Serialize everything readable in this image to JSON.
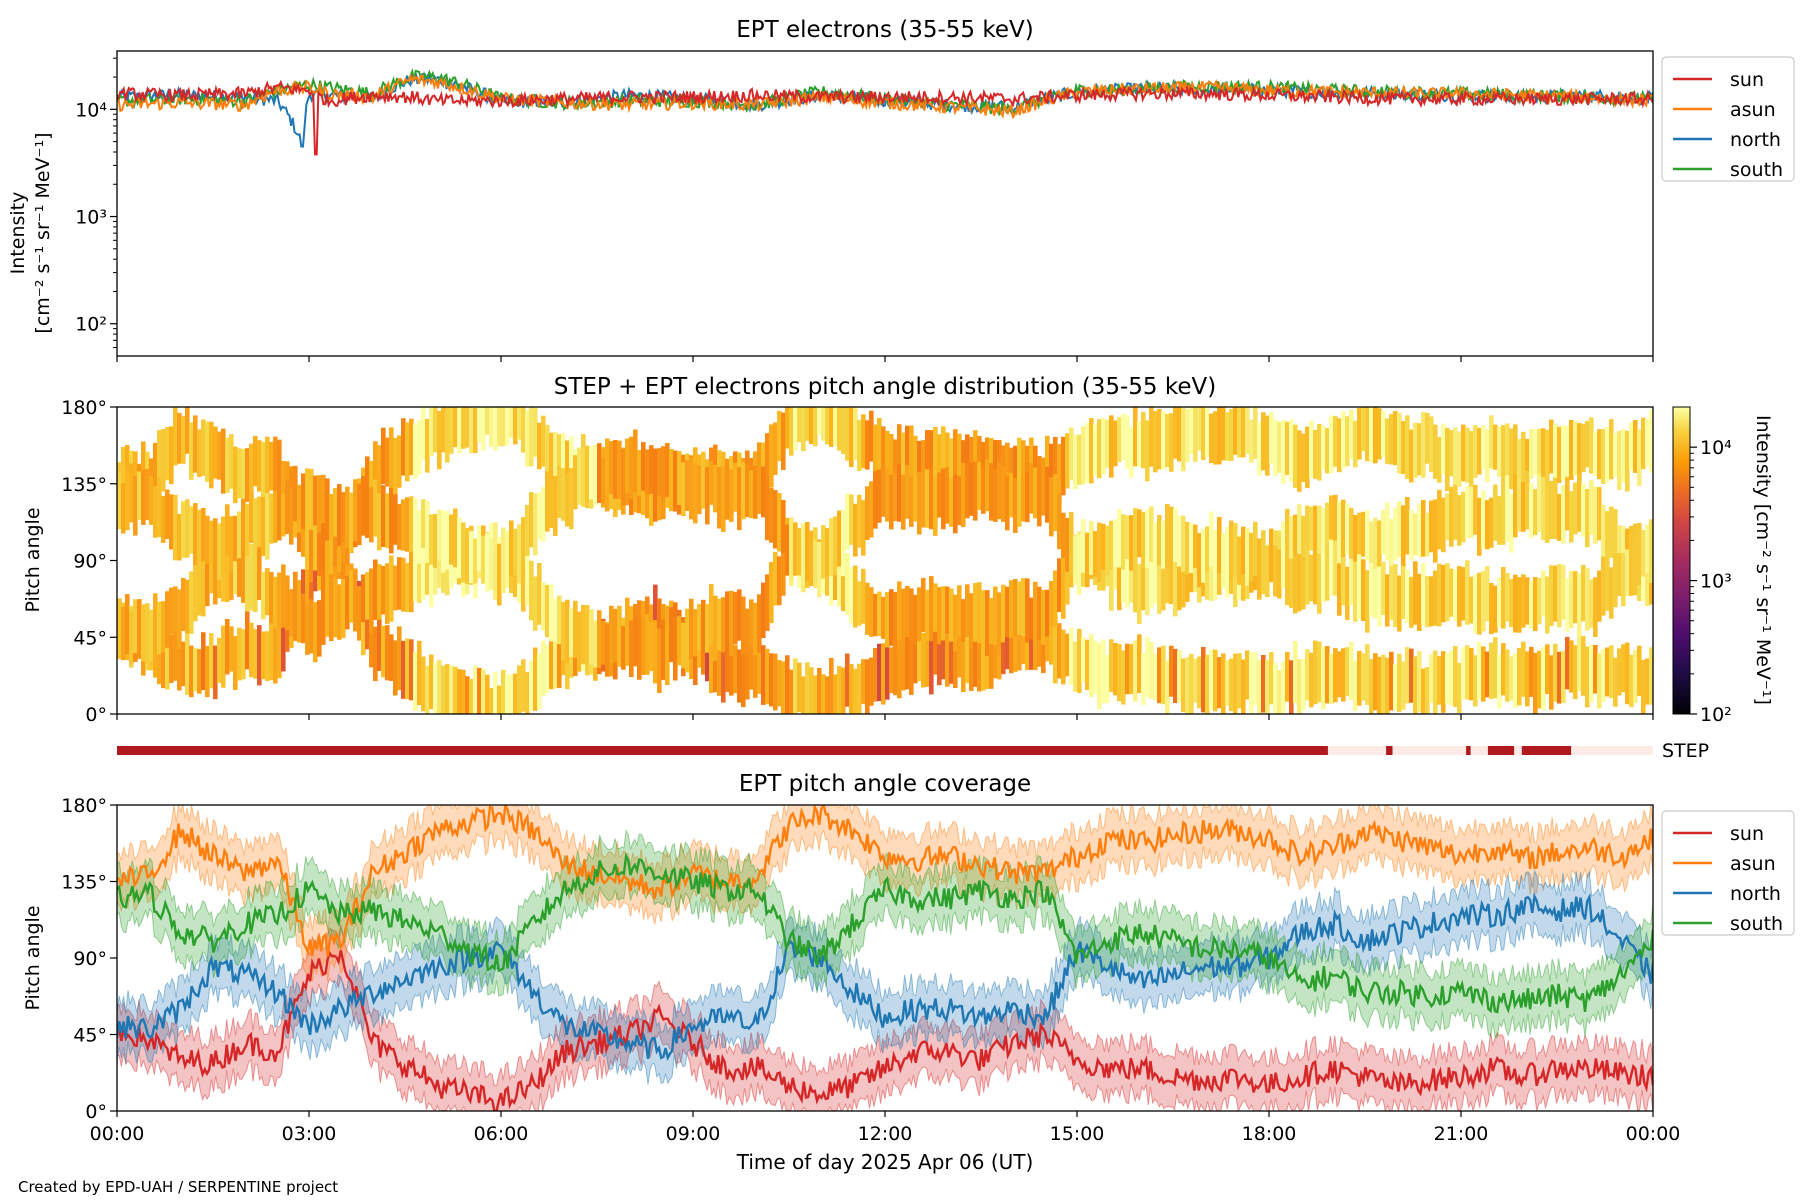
{
  "credit": "Created by EPD-UAH / SERPENTINE project",
  "xlabel": "Time of day 2025 Apr 06 (UT)",
  "xticks": [
    "00:00",
    "03:00",
    "06:00",
    "09:00",
    "12:00",
    "15:00",
    "18:00",
    "21:00",
    "00:00"
  ],
  "colors": {
    "sun": "#d62728",
    "asun": "#ff7f0e",
    "north": "#1f77b4",
    "south": "#2ca02c",
    "step": "#b01a1f",
    "stepGap": "#fbeae6"
  },
  "chart_data": [
    {
      "type": "line",
      "title": "EPT electrons (35-55 keV)",
      "ylabel_line1": "Intensity",
      "ylabel_line2": "[cm⁻² s⁻¹ sr⁻¹ MeV⁻¹]",
      "yscale": "log",
      "ylim": [
        50,
        35000
      ],
      "yticks": [
        {
          "value": 100,
          "label": "10²"
        },
        {
          "value": 1000,
          "label": "10³"
        },
        {
          "value": 10000,
          "label": "10⁴"
        }
      ],
      "xlim_hours": [
        0,
        24
      ],
      "legend_position": "outside-right-top",
      "series": [
        {
          "name": "sun",
          "color_key": "sun",
          "x": [
            0,
            1,
            2,
            2.5,
            3,
            3.3,
            4,
            4.6,
            5,
            6,
            7,
            8,
            9,
            10,
            11,
            12,
            13,
            14,
            15,
            16,
            17,
            18,
            19,
            20,
            21,
            22,
            23,
            24
          ],
          "y": [
            14000,
            13500,
            14000,
            16000,
            15000,
            12000,
            13500,
            13000,
            12000,
            12000,
            12500,
            13000,
            13000,
            13500,
            13000,
            13000,
            13000,
            12500,
            13500,
            14000,
            14000,
            13500,
            13000,
            12500,
            12500,
            12500,
            12500,
            12500
          ]
        },
        {
          "name": "asun",
          "color_key": "asun",
          "x": [
            0,
            1,
            2,
            2.5,
            3,
            3.3,
            4,
            4.6,
            5,
            6,
            7,
            8,
            9,
            10,
            11,
            12,
            13,
            14,
            15,
            16,
            17,
            18,
            19,
            20,
            21,
            22,
            23,
            24
          ],
          "y": [
            11000,
            11500,
            11000,
            15000,
            16000,
            14000,
            13000,
            19000,
            18000,
            12500,
            11500,
            11000,
            11500,
            11000,
            13000,
            11500,
            10500,
            9500,
            14500,
            15500,
            16000,
            15000,
            14500,
            14000,
            14000,
            13500,
            13000,
            12000
          ]
        },
        {
          "name": "north",
          "color_key": "north",
          "x": [
            0,
            1,
            2,
            2.5,
            2.9,
            3,
            3.3,
            4,
            4.6,
            5,
            6,
            7,
            8,
            9,
            10,
            11,
            12,
            13,
            14,
            15,
            16,
            17,
            18,
            19,
            20,
            21,
            22,
            23,
            24
          ],
          "y": [
            13000,
            13500,
            13000,
            12000,
            4500,
            14000,
            13500,
            13000,
            19000,
            19000,
            12000,
            11500,
            13500,
            12500,
            11000,
            13500,
            12000,
            11000,
            10500,
            14500,
            15500,
            15500,
            15000,
            14500,
            14000,
            13500,
            13000,
            13500,
            12500
          ]
        },
        {
          "name": "south",
          "color_key": "south",
          "x": [
            0,
            1,
            2,
            2.5,
            3,
            3.3,
            4,
            4.6,
            5,
            6,
            7,
            8,
            9,
            10,
            11,
            12,
            13,
            14,
            15,
            16,
            17,
            18,
            19,
            20,
            21,
            22,
            23,
            24
          ],
          "y": [
            12000,
            12500,
            12000,
            15000,
            17000,
            16000,
            14000,
            20000,
            20000,
            12500,
            11500,
            12000,
            12000,
            11000,
            14500,
            12500,
            11000,
            10000,
            15000,
            15500,
            16500,
            16000,
            15000,
            14500,
            14000,
            13500,
            13000,
            12500
          ]
        }
      ]
    },
    {
      "type": "heatmap",
      "title": "STEP + EPT electrons pitch angle distribution (35-55 keV)",
      "ylabel": "Pitch angle",
      "ylim": [
        0,
        180
      ],
      "yticks": [
        "0°",
        "45°",
        "90°",
        "135°",
        "180°"
      ],
      "xlim_hours": [
        0,
        24
      ],
      "colorbar": {
        "label": "Intensity [cm⁻² s⁻¹ sr⁻¹ MeV⁻¹]",
        "scale": "log",
        "range": [
          100,
          20000
        ],
        "ticks": [
          {
            "value": 100,
            "label": "10²"
          },
          {
            "value": 1000,
            "label": "10³"
          },
          {
            "value": 10000,
            "label": "10⁴"
          }
        ],
        "colormap": "inferno"
      },
      "dominant_intensity_ranges": [
        {
          "hours": [
            0,
            2.5
          ],
          "intensity": 11000
        },
        {
          "hours": [
            2.5,
            4.6
          ],
          "intensity": 9000
        },
        {
          "hours": [
            4.6,
            7.5
          ],
          "intensity": 16000
        },
        {
          "hours": [
            7.5,
            10.5
          ],
          "intensity": 8500
        },
        {
          "hours": [
            10.5,
            11.6
          ],
          "intensity": 15000
        },
        {
          "hours": [
            11.6,
            14.9
          ],
          "intensity": 8500
        },
        {
          "hours": [
            14.9,
            24
          ],
          "intensity": 15000
        }
      ]
    },
    {
      "type": "table",
      "label": "STEP",
      "xlim_hours": [
        0,
        24
      ],
      "available_intervals_hours": [
        [
          0,
          18.92
        ],
        [
          19.83,
          19.93
        ],
        [
          21.08,
          21.15
        ],
        [
          21.42,
          21.83
        ],
        [
          21.95,
          22.72
        ]
      ]
    },
    {
      "type": "line",
      "title": "EPT pitch angle coverage",
      "ylabel": "Pitch angle",
      "ylim": [
        0,
        180
      ],
      "yticks": [
        "0°",
        "45°",
        "90°",
        "135°",
        "180°"
      ],
      "xlim_hours": [
        0,
        24
      ],
      "legend_position": "outside-right-top",
      "band_halfwidth_deg": 15,
      "series": [
        {
          "name": "sun",
          "color_key": "sun",
          "x": [
            0,
            0.5,
            1,
            1.5,
            2,
            2.5,
            3,
            3.5,
            4,
            5,
            6,
            6.5,
            7,
            7.5,
            8,
            8.5,
            9,
            9.5,
            10,
            10.5,
            11,
            11.5,
            12,
            12.5,
            13,
            13.5,
            14,
            14.5,
            15,
            15.5,
            16,
            16.5,
            17,
            17.5,
            18,
            18.5,
            19,
            19.5,
            20,
            20.5,
            21,
            21.5,
            22,
            22.5,
            23,
            23.5,
            24
          ],
          "y": [
            48,
            42,
            30,
            28,
            40,
            35,
            80,
            95,
            40,
            15,
            5,
            15,
            35,
            40,
            45,
            55,
            40,
            25,
            25,
            15,
            10,
            15,
            25,
            35,
            35,
            30,
            40,
            45,
            30,
            25,
            25,
            20,
            18,
            20,
            15,
            20,
            25,
            20,
            15,
            18,
            20,
            25,
            20,
            25,
            25,
            22,
            20
          ]
        },
        {
          "name": "asun",
          "color_key": "asun",
          "x": [
            0,
            0.5,
            1,
            1.5,
            2,
            2.5,
            3,
            3.5,
            4,
            5,
            6,
            6.5,
            7,
            7.5,
            8,
            8.5,
            9,
            9.5,
            10,
            10.5,
            11,
            11.5,
            12,
            12.5,
            13,
            13.5,
            14,
            14.5,
            15,
            15.5,
            16,
            16.5,
            17,
            17.5,
            18,
            18.5,
            19,
            19.5,
            20,
            20.5,
            21,
            21.5,
            22,
            22.5,
            23,
            23.5,
            24
          ],
          "y": [
            135,
            138,
            165,
            150,
            140,
            148,
            95,
            100,
            140,
            165,
            175,
            165,
            145,
            140,
            135,
            130,
            140,
            135,
            138,
            168,
            175,
            165,
            150,
            148,
            150,
            145,
            140,
            140,
            150,
            160,
            158,
            162,
            165,
            165,
            160,
            150,
            155,
            165,
            160,
            155,
            150,
            155,
            148,
            152,
            155,
            150,
            160
          ]
        },
        {
          "name": "north",
          "color_key": "north",
          "x": [
            0,
            0.5,
            1,
            1.5,
            2,
            2.5,
            3,
            3.5,
            4,
            5,
            6,
            6.5,
            7,
            7.5,
            8,
            8.5,
            9,
            9.5,
            10,
            10.5,
            11,
            11.5,
            12,
            12.5,
            13,
            13.5,
            14,
            14.5,
            15,
            15.5,
            16,
            16.5,
            17,
            17.5,
            18,
            18.5,
            19,
            19.5,
            20,
            20.5,
            21,
            21.5,
            22,
            22.5,
            23,
            23.5,
            24
          ],
          "y": [
            50,
            48,
            60,
            85,
            80,
            70,
            50,
            60,
            70,
            85,
            95,
            70,
            50,
            45,
            40,
            35,
            50,
            55,
            50,
            95,
            90,
            70,
            55,
            60,
            60,
            55,
            60,
            55,
            95,
            85,
            75,
            80,
            85,
            85,
            90,
            105,
            110,
            100,
            105,
            110,
            115,
            115,
            120,
            118,
            120,
            100,
            80
          ]
        },
        {
          "name": "south",
          "color_key": "south",
          "x": [
            0,
            0.5,
            1,
            1.5,
            2,
            2.5,
            3,
            3.5,
            4,
            5,
            6,
            6.5,
            7,
            7.5,
            8,
            8.5,
            9,
            9.5,
            10,
            10.5,
            11,
            11.5,
            12,
            12.5,
            13,
            13.5,
            14,
            14.5,
            15,
            15.5,
            16,
            16.5,
            17,
            17.5,
            18,
            18.5,
            19,
            19.5,
            20,
            20.5,
            21,
            21.5,
            22,
            22.5,
            23,
            23.5,
            24
          ],
          "y": [
            125,
            128,
            105,
            100,
            110,
            115,
            130,
            115,
            118,
            105,
            85,
            110,
            130,
            140,
            145,
            140,
            135,
            130,
            130,
            100,
            90,
            110,
            130,
            125,
            125,
            130,
            125,
            130,
            90,
            100,
            105,
            100,
            95,
            95,
            90,
            75,
            80,
            70,
            70,
            68,
            70,
            65,
            65,
            68,
            65,
            80,
            100
          ]
        }
      ]
    }
  ]
}
